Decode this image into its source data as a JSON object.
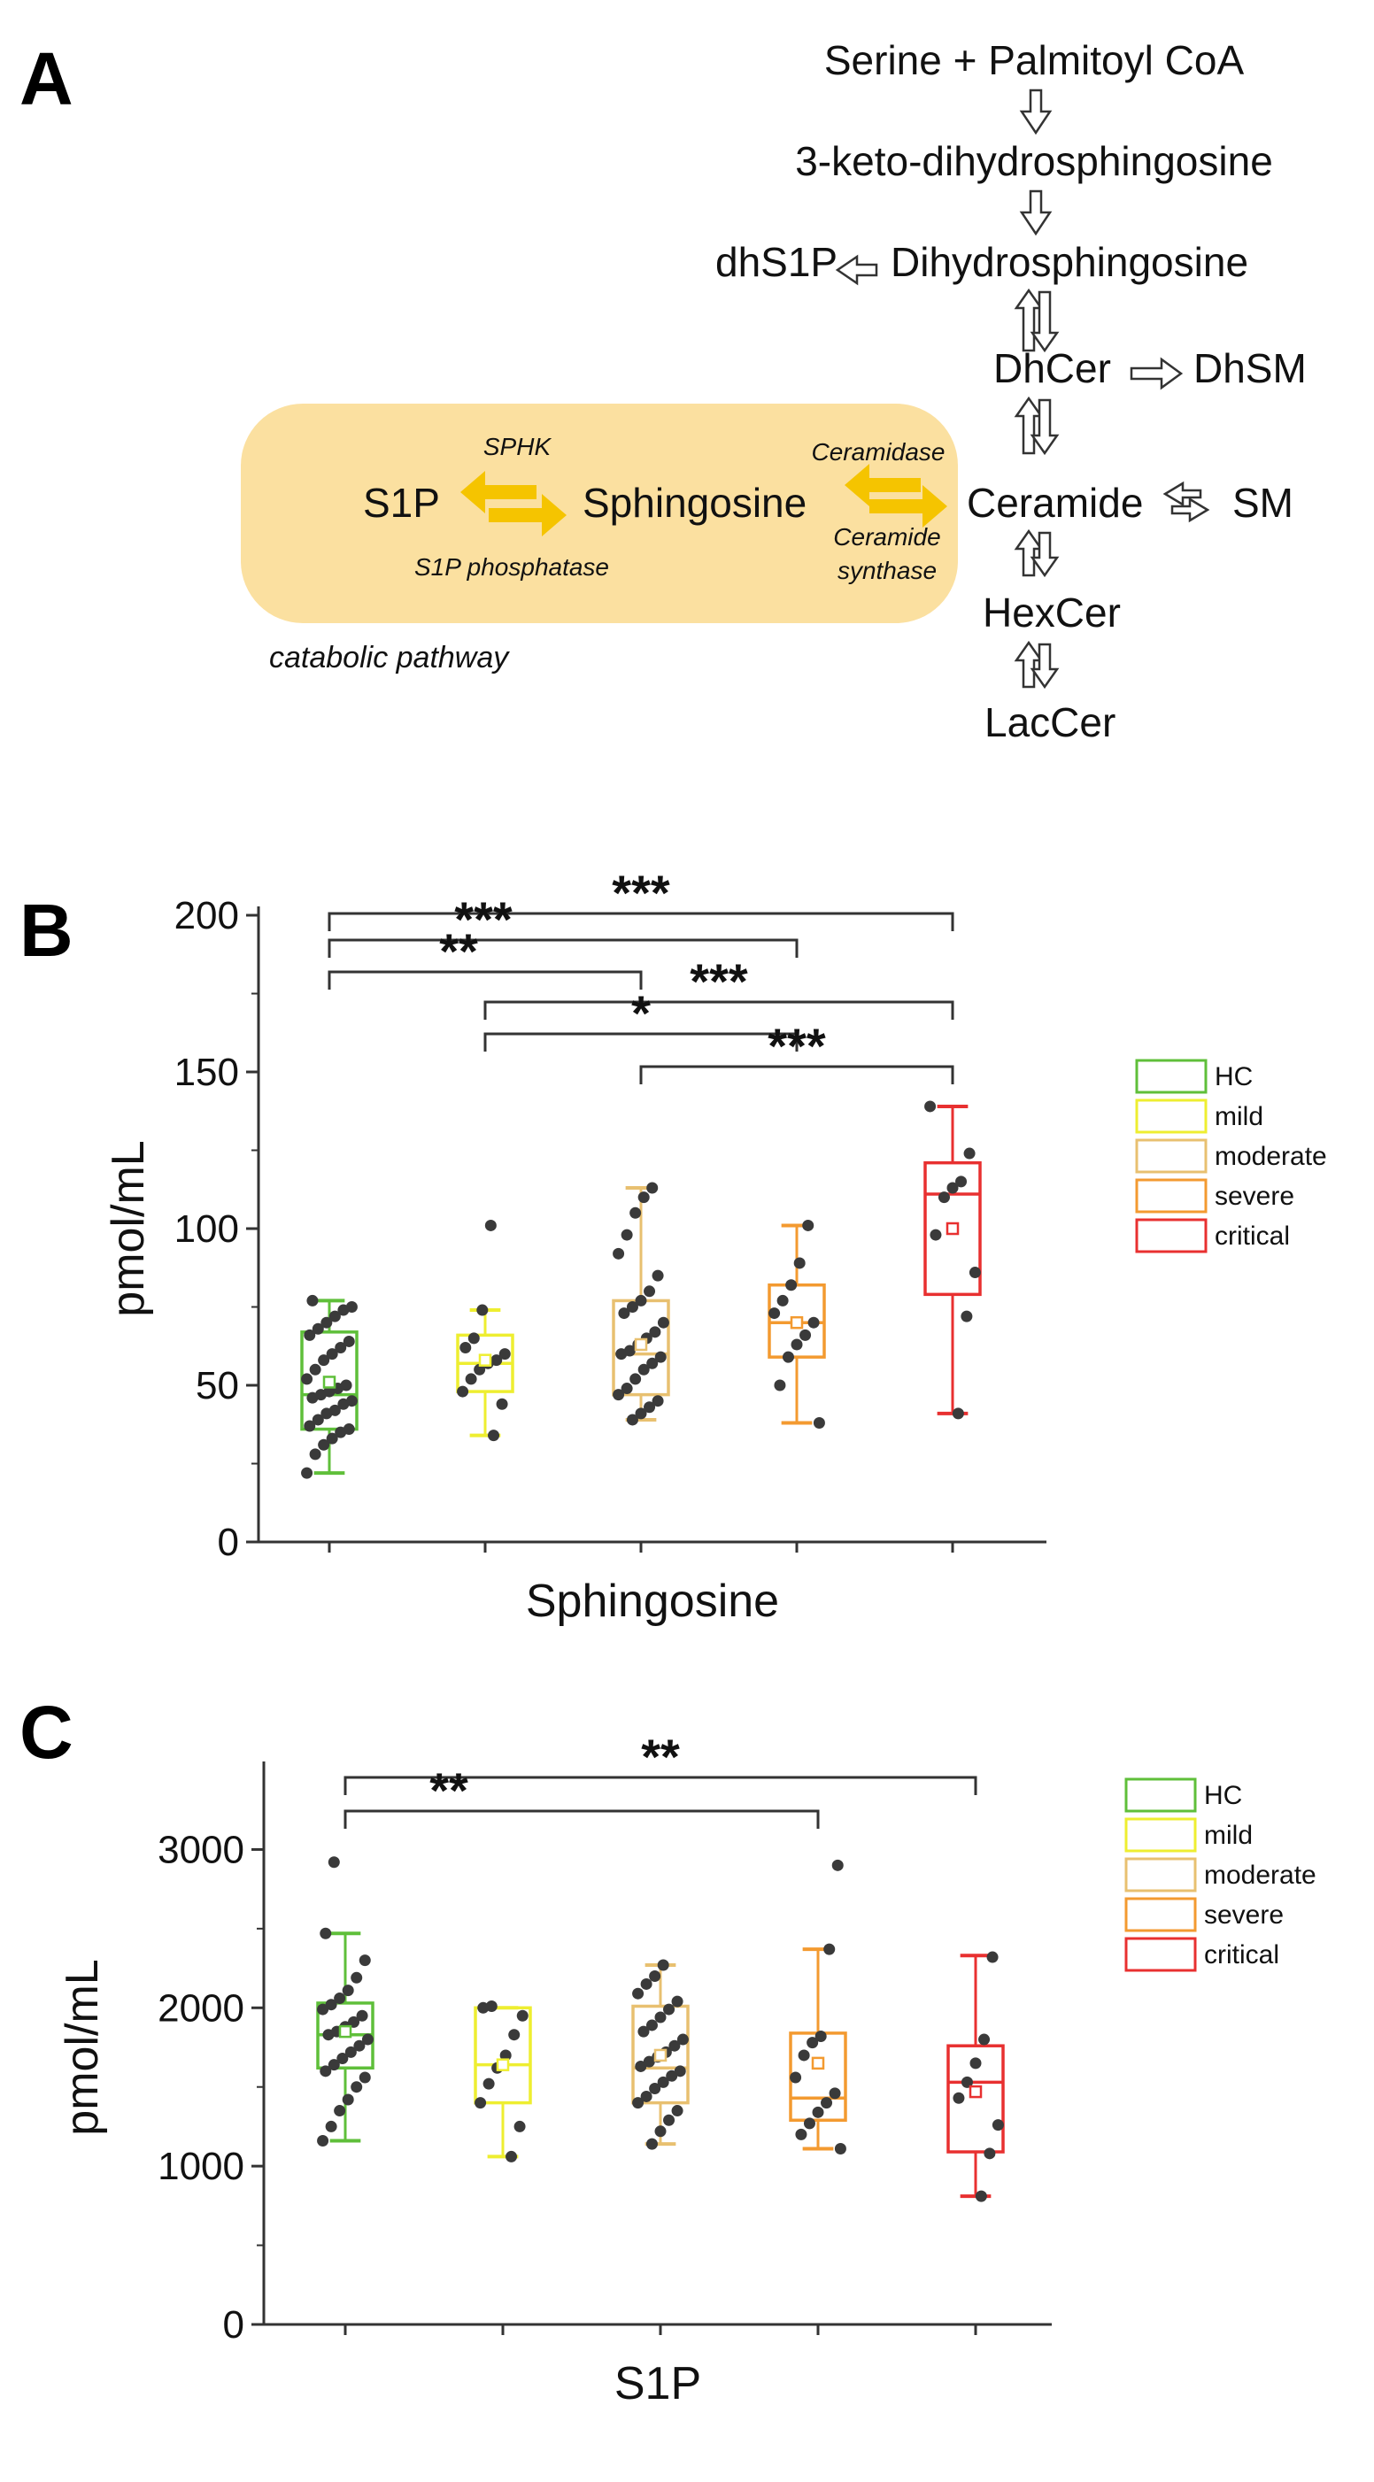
{
  "panels": {
    "a": "A",
    "b": "B",
    "c": "C"
  },
  "pathway": {
    "nodes": {
      "serine": "Serine + Palmitoyl CoA",
      "keto": "3-keto-dihydrosphingosine",
      "dhs1p": "dhS1P",
      "dihydro": "Dihydrosphingosine",
      "dhcer": "DhCer",
      "dhsm": "DhSM",
      "ceramide": "Ceramide",
      "sm": "SM",
      "hexcer": "HexCer",
      "laccer": "LacCer",
      "s1p": "S1P",
      "sphingosine": "Sphingosine"
    },
    "enzymes": {
      "sphk": "SPHK",
      "s1p_phosphatase": "S1P phosphatase",
      "ceramidase": "Ceramidase",
      "ceramide_synthase_1": "Ceramide",
      "ceramide_synthase_2": "synthase"
    },
    "catabolic": "catabolic pathway",
    "colors": {
      "highlight": "#fbe0a0",
      "arrow": "#f5c400"
    }
  },
  "legend": [
    "HC",
    "mild",
    "moderate",
    "severe",
    "critical"
  ],
  "group_colors": [
    "#5fbf3a",
    "#eeee30",
    "#e8c070",
    "#f39a30",
    "#e83030"
  ],
  "chart_data": [
    {
      "type": "box",
      "title": "",
      "xlabel": "Sphingosine",
      "ylabel": "pmol/mL",
      "ylim": [
        0,
        200
      ],
      "yticks": [
        "0",
        "50",
        "100",
        "150",
        "200"
      ],
      "y_tick_values": [
        0,
        50,
        100,
        150,
        200
      ],
      "groups": [
        "HC",
        "mild",
        "moderate",
        "severe",
        "critical"
      ],
      "stats": [
        {
          "min": 22,
          "q1": 36,
          "median": 47,
          "q3": 67,
          "max": 77,
          "mean": 51
        },
        {
          "min": 34,
          "q1": 48,
          "median": 57,
          "q3": 66,
          "max": 74,
          "mean": 58
        },
        {
          "min": 39,
          "q1": 47,
          "median": 60,
          "q3": 77,
          "max": 113,
          "mean": 63
        },
        {
          "min": 38,
          "q1": 59,
          "median": 70,
          "q3": 82,
          "max": 101,
          "mean": 70
        },
        {
          "min": 41,
          "q1": 79,
          "median": 111,
          "q3": 121,
          "max": 139,
          "mean": 100
        }
      ],
      "points": [
        [
          22,
          28,
          31,
          33,
          35,
          36,
          37,
          39,
          41,
          42,
          44,
          45,
          46,
          47,
          48,
          49,
          50,
          52,
          55,
          58,
          60,
          62,
          64,
          66,
          68,
          70,
          72,
          74,
          75,
          77
        ],
        [
          34,
          44,
          48,
          52,
          55,
          57,
          58,
          60,
          62,
          65,
          74,
          101
        ],
        [
          39,
          41,
          43,
          45,
          47,
          49,
          52,
          55,
          57,
          59,
          60,
          61,
          63,
          65,
          67,
          70,
          73,
          75,
          77,
          80,
          85,
          92,
          98,
          105,
          110,
          113
        ],
        [
          38,
          50,
          59,
          63,
          66,
          70,
          73,
          77,
          82,
          89,
          101
        ],
        [
          41,
          72,
          86,
          98,
          110,
          113,
          115,
          124,
          139
        ]
      ],
      "significance": [
        {
          "from": 0,
          "to": 4,
          "label": "***"
        },
        {
          "from": 0,
          "to": 3,
          "label": "***"
        },
        {
          "from": 0,
          "to": 2,
          "label": "**"
        },
        {
          "from": 1,
          "to": 4,
          "label": "***"
        },
        {
          "from": 1,
          "to": 3,
          "label": "*"
        },
        {
          "from": 2,
          "to": 4,
          "label": "***"
        }
      ]
    },
    {
      "type": "box",
      "title": "",
      "xlabel": "S1P",
      "ylabel": "pmol/mL",
      "ylim": [
        0,
        3500
      ],
      "yticks": [
        "0",
        "1000",
        "2000",
        "3000"
      ],
      "y_tick_values": [
        0,
        1000,
        2000,
        3000
      ],
      "groups": [
        "HC",
        "mild",
        "moderate",
        "severe",
        "critical"
      ],
      "stats": [
        {
          "min": 1160,
          "q1": 1620,
          "median": 1830,
          "q3": 2030,
          "max": 2470,
          "mean": 1850
        },
        {
          "min": 1060,
          "q1": 1400,
          "median": 1640,
          "q3": 2000,
          "max": 2000,
          "mean": 1640
        },
        {
          "min": 1140,
          "q1": 1400,
          "median": 1620,
          "q3": 2010,
          "max": 2270,
          "mean": 1700
        },
        {
          "min": 1110,
          "q1": 1290,
          "median": 1430,
          "q3": 1840,
          "max": 2370,
          "mean": 1650
        },
        {
          "min": 810,
          "q1": 1090,
          "median": 1530,
          "q3": 1760,
          "max": 2330,
          "mean": 1470
        }
      ],
      "points": [
        [
          1160,
          1250,
          1350,
          1420,
          1500,
          1560,
          1600,
          1640,
          1680,
          1720,
          1760,
          1800,
          1830,
          1850,
          1880,
          1910,
          1950,
          1990,
          2020,
          2060,
          2110,
          2190,
          2300,
          2470,
          2920
        ],
        [
          1060,
          1250,
          1400,
          1520,
          1620,
          1700,
          1830,
          1950,
          2000,
          2010
        ],
        [
          1140,
          1220,
          1290,
          1350,
          1400,
          1440,
          1490,
          1530,
          1570,
          1600,
          1630,
          1660,
          1690,
          1720,
          1760,
          1800,
          1850,
          1890,
          1940,
          1990,
          2040,
          2090,
          2150,
          2200,
          2270
        ],
        [
          1110,
          1200,
          1270,
          1340,
          1400,
          1460,
          1560,
          1700,
          1780,
          1820,
          2370,
          2900
        ],
        [
          810,
          1080,
          1260,
          1430,
          1530,
          1650,
          1800,
          2320
        ]
      ],
      "significance": [
        {
          "from": 0,
          "to": 4,
          "label": "**"
        },
        {
          "from": 0,
          "to": 3,
          "label": "**"
        }
      ]
    }
  ]
}
